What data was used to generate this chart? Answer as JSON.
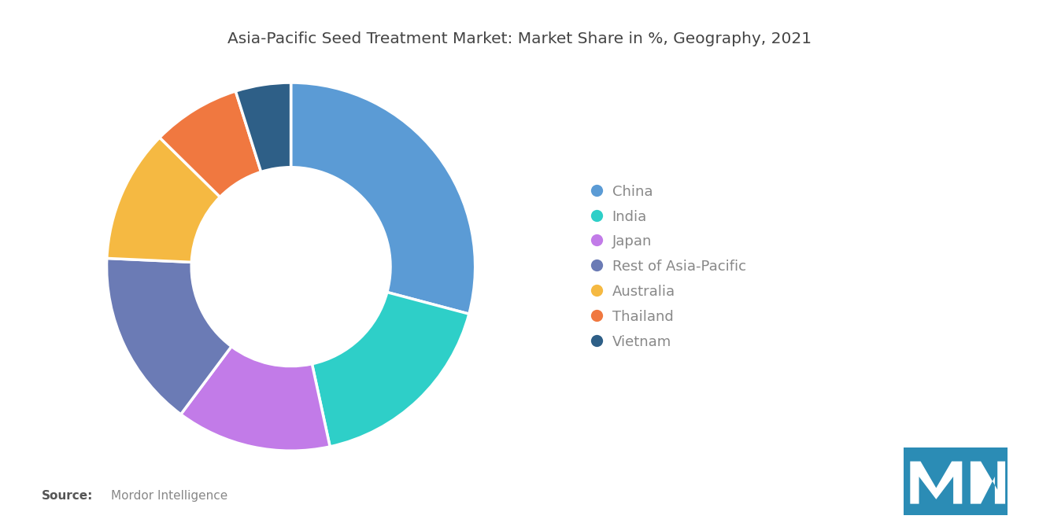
{
  "title": "Asia-Pacific Seed Treatment Market: Market Share in %, Geography, 2021",
  "labels": [
    "China",
    "India",
    "Japan",
    "Rest of Asia-Pacific",
    "Australia",
    "Thailand",
    "Vietnam"
  ],
  "values": [
    30,
    18,
    14,
    16,
    12,
    8,
    5
  ],
  "colors": [
    "#5B9BD5",
    "#2ECFC8",
    "#C27BE8",
    "#6B7BB5",
    "#F5B942",
    "#F07840",
    "#2E5F87"
  ],
  "source_bold": "Source:",
  "source_text": "Mordor Intelligence",
  "background_color": "#FFFFFF",
  "title_color": "#444444",
  "legend_text_color": "#888888",
  "logo_color": "#2B8CB5"
}
